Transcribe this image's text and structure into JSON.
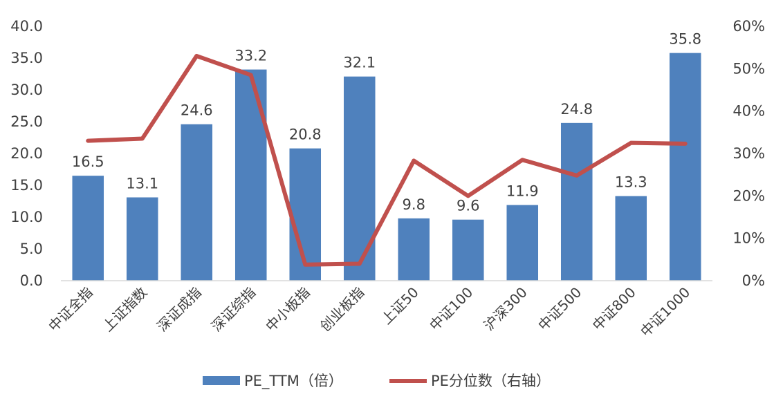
{
  "chart_data": {
    "type": "bar",
    "categories": [
      "中证全指",
      "上证指数",
      "深证成指",
      "深证综指",
      "中小板指",
      "创业板指",
      "上证50",
      "中证100",
      "沪深300",
      "中证500",
      "中证800",
      "中证1000"
    ],
    "series": [
      {
        "name": "PE_TTM（倍）",
        "type": "bar",
        "axis": "left",
        "color": "#4F81BD",
        "values": [
          16.5,
          13.1,
          24.6,
          33.2,
          20.8,
          32.1,
          9.8,
          9.6,
          11.9,
          24.8,
          13.3,
          35.8
        ],
        "labels": [
          "16.5",
          "13.1",
          "24.6",
          "33.2",
          "20.8",
          "32.1",
          "9.8",
          "9.6",
          "11.9",
          "24.8",
          "13.3",
          "35.8"
        ]
      },
      {
        "name": "PE分位数（右轴）",
        "type": "line",
        "axis": "right",
        "color": "#C0504D",
        "values": [
          0.33,
          0.335,
          0.53,
          0.485,
          0.038,
          0.04,
          0.283,
          0.2,
          0.285,
          0.248,
          0.325,
          0.323
        ]
      }
    ],
    "yaxis_left": {
      "ylim": [
        0,
        40
      ],
      "ticks": [
        "0.0",
        "5.0",
        "10.0",
        "15.0",
        "20.0",
        "25.0",
        "30.0",
        "35.0",
        "40.0"
      ]
    },
    "yaxis_right": {
      "ylim": [
        0,
        0.6
      ],
      "ticks": [
        "0%",
        "10%",
        "20%",
        "30%",
        "40%",
        "50%",
        "60%"
      ]
    },
    "grid": false,
    "legend_position": "bottom"
  }
}
